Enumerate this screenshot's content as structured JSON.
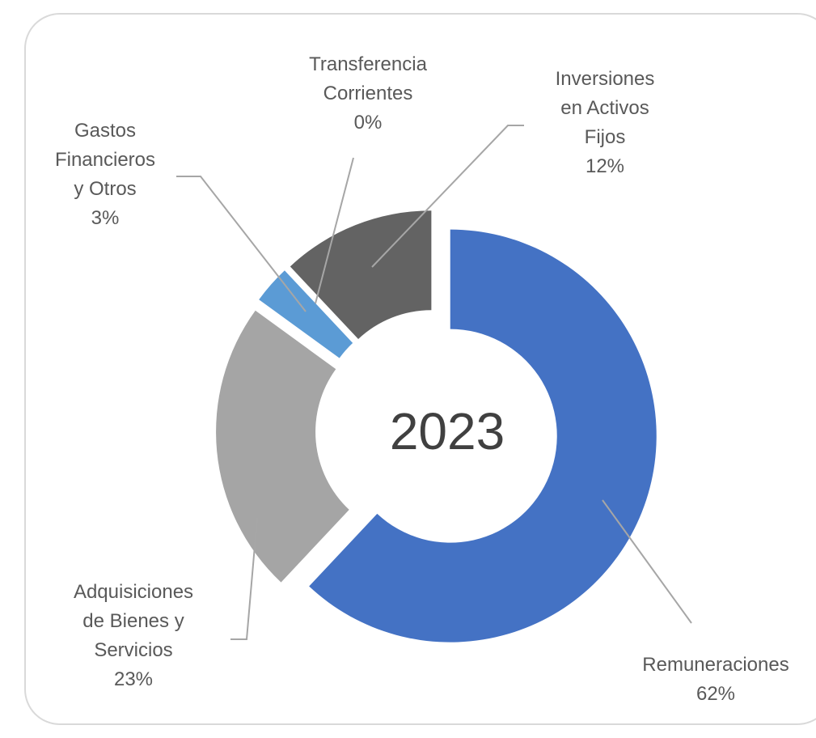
{
  "chart_data": {
    "type": "donut",
    "center_label": "2023",
    "categories": [
      "Remuneraciones",
      "Adquisiciones de Bienes y Servicios",
      "Gastos Financieros y Otros",
      "Transferencia Corrientes",
      "Inversiones en Activos Fijos"
    ],
    "values": [
      62,
      23,
      3,
      0,
      12
    ],
    "value_labels": [
      "62%",
      "23%",
      "3%",
      "0%",
      "12%"
    ],
    "colors": [
      "#4472c4",
      "#a5a5a5",
      "#5b9bd5",
      "#ffc000",
      "#636363"
    ]
  }
}
